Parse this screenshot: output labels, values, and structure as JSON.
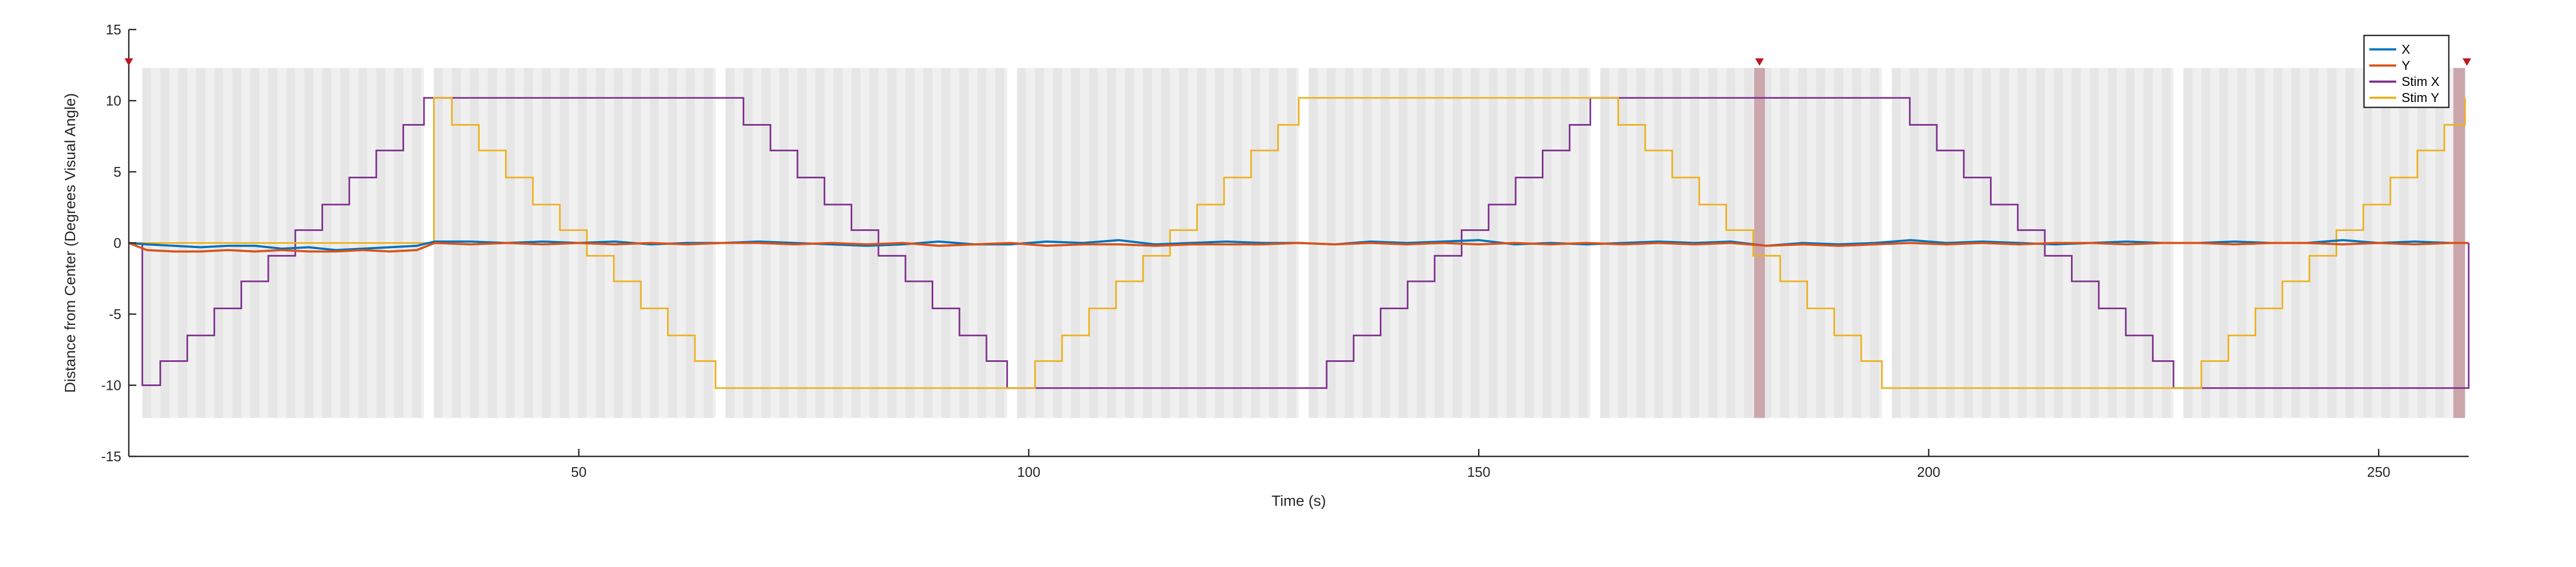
{
  "chart_data": {
    "type": "line",
    "title": "",
    "xlabel": "Time (s)",
    "ylabel": "Distance from Center (Degrees Visual Angle)",
    "xlim": [
      0,
      260
    ],
    "ylim": [
      -15,
      15
    ],
    "xticks": [
      50,
      100,
      150,
      200,
      250
    ],
    "yticks": [
      -15,
      -10,
      -5,
      0,
      5,
      10,
      15
    ],
    "legend_position": "top-right",
    "grid": false,
    "colors": {
      "X": "#0072BD",
      "Y": "#D95319",
      "Stim X": "#7E2F8E",
      "Stim Y": "#EDB120",
      "trial_shading": "#e6e6e6",
      "artifact_shading": "#c49a9f",
      "artifact_marker": "#c0161c"
    },
    "trial_windows": [
      [
        1.5,
        32.8
      ],
      [
        33.9,
        65.2
      ],
      [
        66.3,
        97.6
      ],
      [
        98.7,
        130.0
      ],
      [
        131.1,
        162.4
      ],
      [
        163.5,
        194.8
      ],
      [
        195.9,
        227.2
      ],
      [
        228.3,
        259.6
      ]
    ],
    "artifact_windows": [
      [
        180.6,
        181.8
      ],
      [
        258.3,
        259.6
      ]
    ],
    "artifact_markers_x": [
      0,
      181.2,
      259.8
    ],
    "series": [
      {
        "name": "Stim X",
        "x": [
          0,
          1.5,
          3.5,
          6.5,
          9.5,
          12.5,
          15.5,
          18.5,
          21.5,
          24.5,
          27.5,
          30.5,
          32.8,
          66.3,
          68.3,
          71.3,
          74.3,
          77.3,
          80.3,
          83.3,
          86.3,
          89.3,
          92.3,
          95.3,
          97.6,
          131.1,
          133.1,
          136.1,
          139.1,
          142.1,
          145.1,
          148.1,
          151.1,
          154.1,
          157.1,
          160.1,
          162.4,
          195.9,
          197.9,
          200.9,
          203.9,
          206.9,
          209.9,
          212.9,
          215.9,
          218.9,
          221.9,
          224.9,
          227.2,
          260
        ],
        "y": [
          0,
          -10,
          -8.3,
          -6.5,
          -4.6,
          -2.7,
          -0.9,
          0.9,
          2.7,
          4.6,
          6.5,
          8.3,
          10.2,
          10.2,
          8.3,
          6.5,
          4.6,
          2.7,
          0.9,
          -0.9,
          -2.7,
          -4.6,
          -6.5,
          -8.3,
          -10.2,
          -10.2,
          -8.3,
          -6.5,
          -4.6,
          -2.7,
          -0.9,
          0.9,
          2.7,
          4.6,
          6.5,
          8.3,
          10.2,
          10.2,
          8.3,
          6.5,
          4.6,
          2.7,
          0.9,
          -0.9,
          -2.7,
          -4.6,
          -6.5,
          -8.3,
          -10.2,
          0
        ]
      },
      {
        "name": "Stim Y",
        "x": [
          0,
          33.9,
          35.9,
          38.9,
          41.9,
          44.9,
          47.9,
          50.9,
          53.9,
          56.9,
          59.9,
          62.9,
          65.2,
          98.7,
          100.7,
          103.7,
          106.7,
          109.7,
          112.7,
          115.7,
          118.7,
          121.7,
          124.7,
          127.7,
          130.0,
          163.5,
          165.5,
          168.5,
          171.5,
          174.5,
          177.5,
          180.5,
          183.5,
          186.5,
          189.5,
          192.5,
          194.8,
          228.3,
          230.3,
          233.3,
          236.3,
          239.3,
          242.3,
          245.3,
          248.3,
          251.3,
          254.3,
          257.3,
          259.6
        ],
        "y": [
          0,
          10.2,
          8.3,
          6.5,
          4.6,
          2.7,
          0.9,
          -0.9,
          -2.7,
          -4.6,
          -6.5,
          -8.3,
          -10.2,
          -10.2,
          -8.3,
          -6.5,
          -4.6,
          -2.7,
          -0.9,
          0.9,
          2.7,
          4.6,
          6.5,
          8.3,
          10.2,
          10.2,
          8.3,
          6.5,
          4.6,
          2.7,
          0.9,
          -0.9,
          -2.7,
          -4.6,
          -6.5,
          -8.3,
          -10.2,
          -10.2,
          -8.3,
          -6.5,
          -4.6,
          -2.7,
          -0.9,
          0.9,
          2.7,
          4.6,
          6.5,
          8.3,
          10.2
        ]
      },
      {
        "name": "X",
        "x": [
          0,
          2,
          5,
          8,
          11,
          14,
          17,
          20,
          23,
          26,
          29,
          32,
          34,
          38,
          42,
          46,
          50,
          54,
          58,
          62,
          66,
          70,
          74,
          78,
          82,
          86,
          90,
          94,
          98,
          102,
          106,
          110,
          114,
          118,
          122,
          126,
          130,
          134,
          138,
          142,
          146,
          150,
          154,
          158,
          162,
          166,
          170,
          174,
          178,
          182,
          186,
          190,
          194,
          198,
          202,
          206,
          210,
          214,
          218,
          222,
          226,
          230,
          234,
          238,
          242,
          246,
          250,
          254,
          258,
          260
        ],
        "y": [
          0,
          -0.1,
          -0.2,
          -0.3,
          -0.2,
          -0.2,
          -0.4,
          -0.3,
          -0.5,
          -0.4,
          -0.3,
          -0.2,
          0.1,
          0.1,
          0.0,
          0.1,
          0.0,
          0.1,
          -0.1,
          0.0,
          0.0,
          0.1,
          0.0,
          -0.1,
          -0.2,
          -0.1,
          0.1,
          -0.1,
          -0.1,
          0.1,
          0.0,
          0.2,
          -0.1,
          0.0,
          0.1,
          0.0,
          0.0,
          -0.1,
          0.1,
          0.0,
          0.1,
          0.2,
          -0.1,
          0.0,
          -0.1,
          0.0,
          0.1,
          0.0,
          0.1,
          -0.2,
          0.0,
          -0.1,
          0.0,
          0.2,
          0.0,
          0.1,
          0.0,
          -0.1,
          0.0,
          0.1,
          0.0,
          0.0,
          0.1,
          0.0,
          0.0,
          0.2,
          0.0,
          0.1,
          0.0,
          0.0
        ]
      },
      {
        "name": "Y",
        "x": [
          0,
          2,
          5,
          8,
          11,
          14,
          17,
          20,
          23,
          26,
          29,
          32,
          34,
          38,
          42,
          46,
          50,
          54,
          58,
          62,
          66,
          70,
          74,
          78,
          82,
          86,
          90,
          94,
          98,
          102,
          106,
          110,
          114,
          118,
          122,
          126,
          130,
          134,
          138,
          142,
          146,
          150,
          154,
          158,
          162,
          166,
          170,
          174,
          178,
          182,
          186,
          190,
          194,
          198,
          202,
          206,
          210,
          214,
          218,
          222,
          226,
          230,
          234,
          238,
          242,
          246,
          250,
          254,
          258,
          260
        ],
        "y": [
          0,
          -0.5,
          -0.6,
          -0.6,
          -0.5,
          -0.6,
          -0.5,
          -0.6,
          -0.6,
          -0.5,
          -0.6,
          -0.5,
          0.0,
          -0.1,
          0.0,
          -0.1,
          0.0,
          -0.1,
          0.0,
          -0.1,
          0.0,
          0.0,
          -0.1,
          0.0,
          -0.1,
          0.0,
          -0.2,
          -0.1,
          0.0,
          -0.2,
          -0.1,
          -0.1,
          -0.2,
          -0.1,
          -0.1,
          -0.1,
          0.0,
          -0.1,
          0.0,
          -0.1,
          0.0,
          -0.1,
          0.0,
          -0.1,
          0.0,
          -0.1,
          0.0,
          -0.1,
          0.0,
          -0.2,
          -0.1,
          -0.2,
          -0.1,
          0.0,
          -0.1,
          0.0,
          -0.1,
          0.0,
          0.0,
          -0.1,
          0.0,
          0.0,
          -0.1,
          0.0,
          0.0,
          -0.1,
          0.0,
          -0.1,
          0.0,
          0.0
        ]
      }
    ]
  }
}
